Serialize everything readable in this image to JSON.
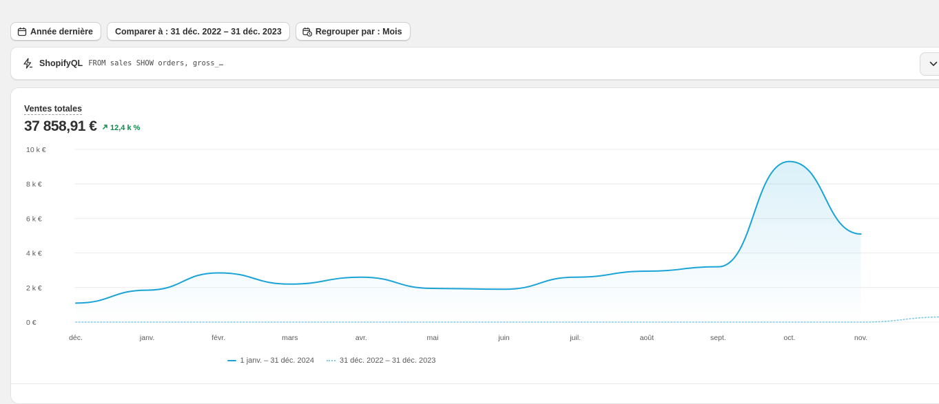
{
  "toolbar": {
    "date_range": "Année dernière",
    "compare": "Comparer à : 31 déc. 2022 – 31 déc. 2023",
    "group_by": "Regrouper par : Mois"
  },
  "shopifyql": {
    "label": "ShopifyQL",
    "query": "FROM sales SHOW orders, gross_…"
  },
  "metric": {
    "title": "Ventes totales",
    "value": "37 858,91 €",
    "change": "12,4 k %"
  },
  "legend": {
    "current": "1 janv. – 31 déc. 2024",
    "previous": "31 déc. 2022 – 31 déc. 2023"
  },
  "colors": {
    "current": "#1aa3d6",
    "previous": "#7cc9e6",
    "positive": "#0c8a4a"
  },
  "chart_data": {
    "type": "line",
    "title": "Ventes totales",
    "x_labels": [
      "déc.",
      "janv.",
      "févr.",
      "mars",
      "avr.",
      "mai",
      "juin",
      "juil.",
      "août",
      "sept.",
      "oct.",
      "nov."
    ],
    "y_tick_labels": [
      "0 €",
      "2 k €",
      "4 k €",
      "6 k €",
      "8 k €",
      "10 k €"
    ],
    "y_ticks": [
      0,
      2000,
      4000,
      6000,
      8000,
      10000
    ],
    "ylim": [
      0,
      10000
    ],
    "series": [
      {
        "name": "1 janv. – 31 déc. 2024",
        "style": "solid",
        "values": [
          1100,
          1850,
          2850,
          2200,
          2600,
          1950,
          1900,
          2600,
          2950,
          3200,
          9300,
          5100
        ]
      },
      {
        "name": "31 déc. 2022 – 31 déc. 2023",
        "style": "dotted",
        "x_extent": 12.2,
        "values": [
          0,
          0,
          0,
          0,
          0,
          0,
          0,
          0,
          0,
          0,
          0,
          0,
          300
        ]
      }
    ]
  }
}
